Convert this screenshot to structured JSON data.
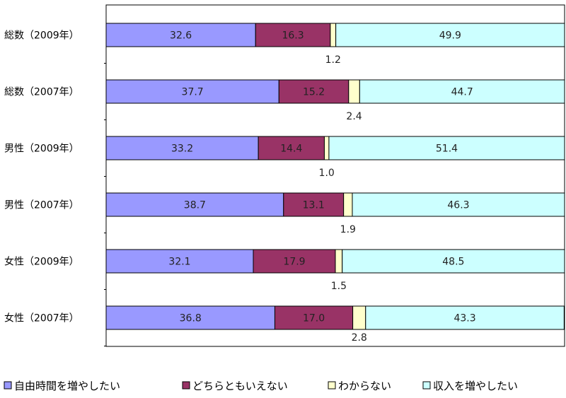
{
  "chart_data": {
    "type": "bar",
    "orientation": "horizontal",
    "stacked": true,
    "percent": true,
    "categories": [
      "総数（2009年）",
      "総数（2007年）",
      "男性（2009年）",
      "男性（2007年）",
      "女性（2009年）",
      "女性（2007年）"
    ],
    "series": [
      {
        "name": "自由時間を増やしたい",
        "color": "#9999ff",
        "values": [
          32.6,
          37.7,
          33.2,
          38.7,
          32.1,
          36.8
        ],
        "labels": [
          "32.6",
          "37.7",
          "33.2",
          "38.7",
          "32.1",
          "36.8"
        ]
      },
      {
        "name": "どちらともいえない",
        "color": "#993366",
        "values": [
          16.3,
          15.2,
          14.4,
          13.1,
          17.9,
          17.0
        ],
        "labels": [
          "16.3",
          "15.2",
          "14.4",
          "13.1",
          "17.9",
          "17.0"
        ]
      },
      {
        "name": "わからない",
        "color": "#ffffcc",
        "values": [
          1.2,
          2.4,
          1.0,
          1.9,
          1.5,
          2.8
        ],
        "labels": [
          "1.2",
          "2.4",
          "1.0",
          "1.9",
          "1.5",
          "2.8"
        ]
      },
      {
        "name": "収入を増やしたい",
        "color": "#ccffff",
        "values": [
          49.9,
          44.7,
          51.4,
          46.3,
          48.5,
          43.3
        ],
        "labels": [
          "49.9",
          "44.7",
          "51.4",
          "46.3",
          "48.5",
          "43.3"
        ]
      }
    ],
    "xlim": [
      0,
      100
    ],
    "grid": false,
    "legend_position": "bottom"
  }
}
